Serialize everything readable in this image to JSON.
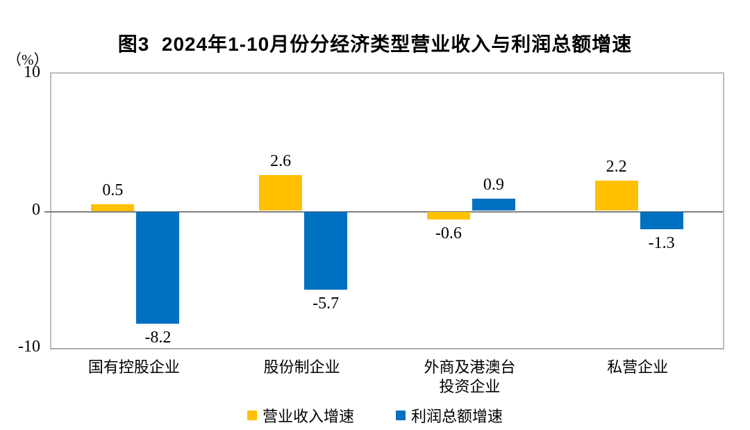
{
  "chart_data": {
    "type": "bar",
    "title": "图3  2024年1-10月份分经济类型营业收入与利润总额增速",
    "unit_label": "（%）",
    "categories": [
      "国有控股企业",
      "股份制企业",
      "外商及港澳台\n投资企业",
      "私营企业"
    ],
    "series": [
      {
        "name": "营业收入增速",
        "color": "#FFC000",
        "values": [
          0.5,
          2.6,
          -0.6,
          2.2
        ]
      },
      {
        "name": "利润总额增速",
        "color": "#0070C0",
        "values": [
          -8.2,
          -5.7,
          0.9,
          -1.3
        ]
      }
    ],
    "data_labels": [
      [
        "0.5",
        "2.6",
        "-0.6",
        "2.2"
      ],
      [
        "-8.2",
        "-5.7",
        "0.9",
        "-1.3"
      ]
    ],
    "ylim": [
      -10,
      10
    ],
    "y_ticks": [
      "10",
      "0",
      "-10"
    ],
    "grid": false,
    "legend_position": "bottom",
    "axis_line_color": "#808080",
    "frame_color": "#bdbdbd"
  }
}
